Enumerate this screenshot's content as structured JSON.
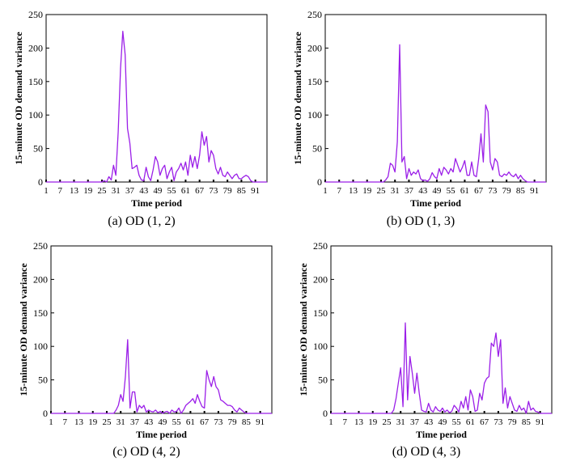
{
  "chart_data": [
    {
      "type": "line",
      "caption": "(a) OD (1, 2)",
      "xlabel": "Time period",
      "ylabel": "15-minute OD demand variance",
      "xlim": [
        1,
        96
      ],
      "ylim": [
        0,
        250
      ],
      "yticks": [
        0,
        50,
        100,
        150,
        200,
        250
      ],
      "xticks": [
        1,
        7,
        13,
        19,
        25,
        31,
        37,
        43,
        49,
        55,
        61,
        67,
        73,
        79,
        85,
        91
      ],
      "line_color": "#9b1fe8",
      "series": [
        {
          "x": [
            1,
            2,
            3,
            4,
            5,
            6,
            7,
            8,
            9,
            10,
            11,
            12,
            13,
            14,
            15,
            16,
            17,
            18,
            19,
            20,
            21,
            22,
            23,
            24,
            25,
            26,
            27,
            28,
            29,
            30,
            31,
            32,
            33,
            34,
            35,
            36,
            37,
            38,
            39,
            40,
            41,
            42,
            43,
            44,
            45,
            46,
            47,
            48,
            49,
            50,
            51,
            52,
            53,
            54,
            55,
            56,
            57,
            58,
            59,
            60,
            61,
            62,
            63,
            64,
            65,
            66,
            67,
            68,
            69,
            70,
            71,
            72,
            73,
            74,
            75,
            76,
            77,
            78,
            79,
            80,
            81,
            82,
            83,
            84,
            85,
            86,
            87,
            88,
            89,
            90,
            91,
            92,
            93,
            94,
            95,
            96
          ],
          "values": [
            0,
            0,
            0,
            0,
            0,
            0,
            0,
            0,
            0,
            0,
            0,
            0,
            0,
            0,
            0,
            0,
            0,
            0,
            0,
            0,
            0,
            0,
            0,
            0,
            0,
            2,
            0,
            8,
            3,
            25,
            10,
            75,
            170,
            225,
            190,
            80,
            58,
            20,
            22,
            25,
            10,
            3,
            2,
            22,
            8,
            2,
            18,
            38,
            30,
            10,
            20,
            25,
            5,
            15,
            22,
            2,
            15,
            20,
            28,
            18,
            30,
            10,
            40,
            22,
            38,
            20,
            40,
            75,
            55,
            68,
            30,
            47,
            40,
            20,
            12,
            22,
            10,
            8,
            15,
            10,
            5,
            10,
            12,
            5,
            5,
            8,
            10,
            8,
            2,
            0,
            0,
            0,
            0,
            0,
            0,
            0
          ]
        }
      ]
    },
    {
      "type": "line",
      "caption": "(b) OD (1, 3)",
      "xlabel": "Time period",
      "ylabel": "15-minute OD demand variance",
      "xlim": [
        1,
        96
      ],
      "ylim": [
        0,
        250
      ],
      "yticks": [
        0,
        50,
        100,
        150,
        200,
        250
      ],
      "xticks": [
        1,
        7,
        13,
        19,
        25,
        31,
        37,
        43,
        49,
        55,
        61,
        67,
        73,
        79,
        85,
        91
      ],
      "line_color": "#9b1fe8",
      "series": [
        {
          "x": [
            1,
            2,
            3,
            4,
            5,
            6,
            7,
            8,
            9,
            10,
            11,
            12,
            13,
            14,
            15,
            16,
            17,
            18,
            19,
            20,
            21,
            22,
            23,
            24,
            25,
            26,
            27,
            28,
            29,
            30,
            31,
            32,
            33,
            34,
            35,
            36,
            37,
            38,
            39,
            40,
            41,
            42,
            43,
            44,
            45,
            46,
            47,
            48,
            49,
            50,
            51,
            52,
            53,
            54,
            55,
            56,
            57,
            58,
            59,
            60,
            61,
            62,
            63,
            64,
            65,
            66,
            67,
            68,
            69,
            70,
            71,
            72,
            73,
            74,
            75,
            76,
            77,
            78,
            79,
            80,
            81,
            82,
            83,
            84,
            85,
            86,
            87,
            88,
            89,
            90,
            91,
            92,
            93,
            94,
            95,
            96
          ],
          "values": [
            0,
            0,
            0,
            0,
            0,
            0,
            0,
            0,
            0,
            0,
            0,
            0,
            0,
            0,
            0,
            0,
            0,
            0,
            0,
            0,
            0,
            0,
            0,
            0,
            0,
            0,
            3,
            8,
            28,
            25,
            15,
            60,
            205,
            30,
            38,
            5,
            20,
            10,
            15,
            12,
            18,
            5,
            2,
            3,
            1,
            5,
            14,
            8,
            5,
            20,
            10,
            22,
            18,
            12,
            20,
            15,
            35,
            25,
            15,
            22,
            32,
            10,
            10,
            30,
            10,
            8,
            35,
            72,
            30,
            115,
            105,
            30,
            18,
            35,
            30,
            10,
            8,
            12,
            10,
            15,
            10,
            8,
            12,
            5,
            10,
            5,
            2,
            0,
            0,
            0,
            0,
            0,
            0,
            0,
            0,
            0
          ]
        }
      ]
    },
    {
      "type": "line",
      "caption": "(c) OD (4, 2)",
      "xlabel": "Time period",
      "ylabel": "15-minute OD demand variance",
      "xlim": [
        1,
        96
      ],
      "ylim": [
        0,
        250
      ],
      "yticks": [
        0,
        50,
        100,
        150,
        200,
        250
      ],
      "xticks": [
        1,
        7,
        13,
        19,
        25,
        31,
        37,
        43,
        49,
        55,
        61,
        67,
        73,
        79,
        85,
        91
      ],
      "line_color": "#9b1fe8",
      "series": [
        {
          "x": [
            1,
            2,
            3,
            4,
            5,
            6,
            7,
            8,
            9,
            10,
            11,
            12,
            13,
            14,
            15,
            16,
            17,
            18,
            19,
            20,
            21,
            22,
            23,
            24,
            25,
            26,
            27,
            28,
            29,
            30,
            31,
            32,
            33,
            34,
            35,
            36,
            37,
            38,
            39,
            40,
            41,
            42,
            43,
            44,
            45,
            46,
            47,
            48,
            49,
            50,
            51,
            52,
            53,
            54,
            55,
            56,
            57,
            58,
            59,
            60,
            61,
            62,
            63,
            64,
            65,
            66,
            67,
            68,
            69,
            70,
            71,
            72,
            73,
            74,
            75,
            76,
            77,
            78,
            79,
            80,
            81,
            82,
            83,
            84,
            85,
            86,
            87,
            88,
            89,
            90,
            91,
            92,
            93,
            94,
            95,
            96
          ],
          "values": [
            0,
            0,
            0,
            0,
            0,
            0,
            0,
            0,
            0,
            0,
            0,
            0,
            0,
            0,
            0,
            0,
            0,
            0,
            0,
            0,
            0,
            0,
            0,
            0,
            0,
            0,
            0,
            0,
            5,
            12,
            28,
            18,
            55,
            110,
            8,
            32,
            32,
            2,
            12,
            8,
            12,
            2,
            5,
            3,
            2,
            5,
            1,
            3,
            0,
            2,
            3,
            0,
            5,
            2,
            3,
            8,
            0,
            5,
            12,
            15,
            18,
            22,
            15,
            28,
            18,
            10,
            8,
            64,
            50,
            40,
            55,
            40,
            35,
            20,
            18,
            15,
            12,
            12,
            10,
            5,
            2,
            8,
            5,
            2,
            0,
            0,
            0,
            0,
            0,
            0,
            0,
            0,
            0,
            0,
            0,
            0
          ]
        }
      ]
    },
    {
      "type": "line",
      "caption": "(d) OD (4, 3)",
      "xlabel": "Time period",
      "ylabel": "15-minute OD demand variance",
      "xlim": [
        1,
        96
      ],
      "ylim": [
        0,
        250
      ],
      "yticks": [
        0,
        50,
        100,
        150,
        200,
        250
      ],
      "xticks": [
        1,
        7,
        13,
        19,
        25,
        31,
        37,
        43,
        49,
        55,
        61,
        67,
        73,
        79,
        85,
        91
      ],
      "line_color": "#9b1fe8",
      "series": [
        {
          "x": [
            1,
            2,
            3,
            4,
            5,
            6,
            7,
            8,
            9,
            10,
            11,
            12,
            13,
            14,
            15,
            16,
            17,
            18,
            19,
            20,
            21,
            22,
            23,
            24,
            25,
            26,
            27,
            28,
            29,
            30,
            31,
            32,
            33,
            34,
            35,
            36,
            37,
            38,
            39,
            40,
            41,
            42,
            43,
            44,
            45,
            46,
            47,
            48,
            49,
            50,
            51,
            52,
            53,
            54,
            55,
            56,
            57,
            58,
            59,
            60,
            61,
            62,
            63,
            64,
            65,
            66,
            67,
            68,
            69,
            70,
            71,
            72,
            73,
            74,
            75,
            76,
            77,
            78,
            79,
            80,
            81,
            82,
            83,
            84,
            85,
            86,
            87,
            88,
            89,
            90,
            91,
            92,
            93,
            94,
            95,
            96
          ],
          "values": [
            0,
            0,
            0,
            0,
            0,
            0,
            0,
            0,
            0,
            0,
            0,
            0,
            0,
            0,
            0,
            0,
            0,
            0,
            0,
            0,
            0,
            0,
            0,
            0,
            0,
            0,
            0,
            5,
            22,
            45,
            68,
            10,
            135,
            20,
            85,
            60,
            30,
            60,
            30,
            5,
            3,
            2,
            15,
            5,
            2,
            10,
            5,
            3,
            8,
            2,
            5,
            1,
            3,
            12,
            8,
            2,
            18,
            8,
            25,
            5,
            35,
            25,
            3,
            5,
            30,
            20,
            45,
            52,
            55,
            105,
            100,
            120,
            85,
            110,
            15,
            38,
            8,
            25,
            15,
            5,
            3,
            12,
            5,
            8,
            0,
            18,
            5,
            8,
            3,
            2,
            0,
            0,
            0,
            0,
            0,
            0
          ]
        }
      ]
    }
  ]
}
